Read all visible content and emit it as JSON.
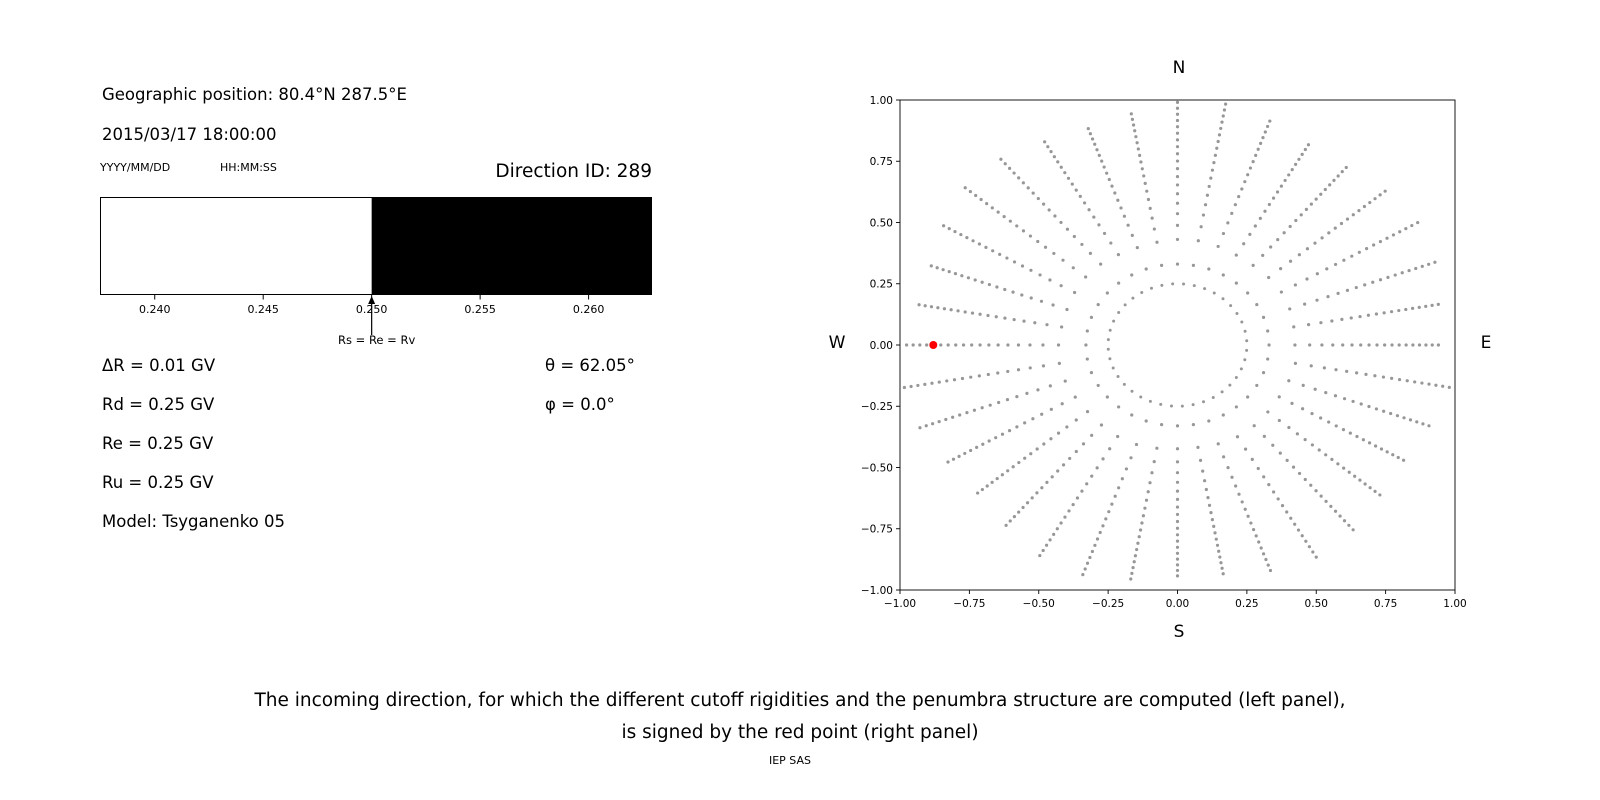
{
  "header": {
    "geo_position": "Geographic position: 80.4°N 287.5°E",
    "datetime": "2015/03/17 18:00:00",
    "date_format_hint": "YYYY/MM/DD",
    "time_format_hint": "HH:MM:SS",
    "direction_id": "Direction ID: 289"
  },
  "info": {
    "delta_r": "ΔR = 0.01 GV",
    "rd": "Rd = 0.25 GV",
    "re": "Re = 0.25 GV",
    "ru": "Ru = 0.25 GV",
    "model": "Model: Tsyganenko 05",
    "theta": "θ = 62.05°",
    "phi": "φ = 0.0°"
  },
  "caption": {
    "line1": "The incoming direction, for which the different cutoff rigidities and the penumbra structure are computed (left panel),",
    "line2": "is signed by the red point (right panel)"
  },
  "footer": "IEP SAS",
  "chart_data": [
    {
      "type": "bar",
      "description": "penumbra band: white segment then black segment along rigidity axis (GV)",
      "xlim": [
        0.2375,
        0.2629
      ],
      "xticks": [
        0.24,
        0.245,
        0.25,
        0.255,
        0.26
      ],
      "segments": [
        {
          "from": 0.2375,
          "to": 0.25,
          "color": "#ffffff"
        },
        {
          "from": 0.25,
          "to": 0.2629,
          "color": "#000000"
        }
      ],
      "annotation": {
        "x": 0.25,
        "label": "Rs = Re = Rv"
      }
    },
    {
      "type": "scatter",
      "description": "incoming directions: grey dotted radial spokes with inner dotted ring; red point marks selected direction",
      "xlim": [
        -1.0,
        1.0
      ],
      "ylim": [
        -1.0,
        1.0
      ],
      "xticks": [
        -1.0,
        -0.75,
        -0.5,
        -0.25,
        0.0,
        0.25,
        0.5,
        0.75,
        1.0
      ],
      "yticks": [
        -1.0,
        -0.75,
        -0.5,
        -0.25,
        0.0,
        0.25,
        0.5,
        0.75,
        1.0
      ],
      "grid": false,
      "compass": {
        "top": "N",
        "bottom": "S",
        "left": "W",
        "right": "E"
      },
      "dot_color": "#8c8c8c",
      "red_point": {
        "x": -0.88,
        "y": 0.0,
        "color": "#ff0000"
      },
      "spokes": {
        "count": 36,
        "r_start": 0.33,
        "r_end": 1.0,
        "points_per_spoke": 19,
        "density_exponent": 0.65,
        "end_variation": 0.06
      },
      "inner_ring": {
        "radius": 0.25,
        "points": 40
      }
    }
  ]
}
